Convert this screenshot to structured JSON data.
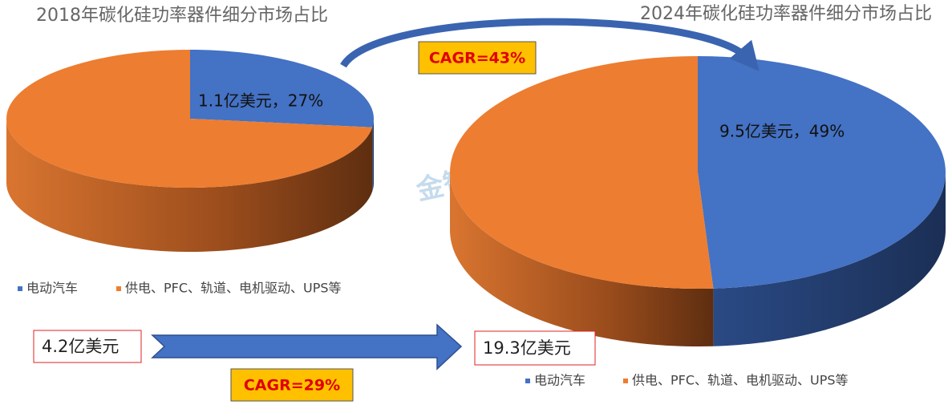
{
  "chart_data": [
    {
      "type": "pie",
      "title": "2018年碳化硅功率器件细分市场占比",
      "categories": [
        "电动汽车",
        "供电、PFC、轨道、电机驱动、UPS等"
      ],
      "values": [
        27,
        73
      ],
      "value_labels": [
        "1.1亿美元，27%",
        null
      ],
      "colors": [
        "#4472c4",
        "#ed7d31"
      ],
      "total": "4.2亿美元"
    },
    {
      "type": "pie",
      "title": "2024年碳化硅功率器件细分市场占比",
      "categories": [
        "电动汽车",
        "供电、PFC、轨道、电机驱动、UPS等"
      ],
      "values": [
        49,
        51
      ],
      "value_labels": [
        "9.5亿美元，49%",
        null
      ],
      "colors": [
        "#4472c4",
        "#ed7d31"
      ],
      "total": "19.3亿美元"
    }
  ],
  "annotations": [
    "CAGR=43%",
    "CAGR=29%"
  ],
  "watermark": "金智创新"
}
